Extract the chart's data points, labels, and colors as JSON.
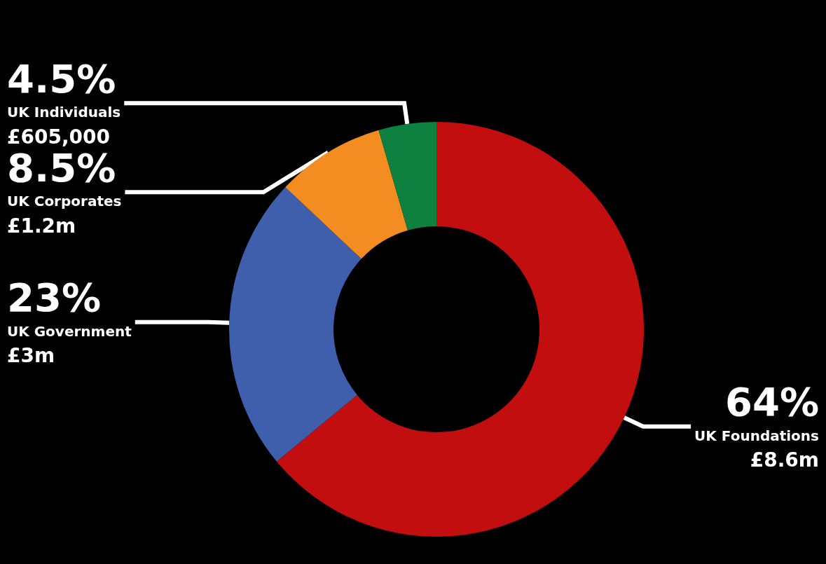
{
  "chart_data": {
    "type": "donut",
    "categories": [
      "UK Foundations",
      "UK Government",
      "UK Corporates",
      "UK Individuals"
    ],
    "values": [
      64,
      23,
      8.5,
      4.5
    ],
    "colors": [
      "#c20e0e",
      "#3f5fad",
      "#f48d21",
      "#0e8040"
    ],
    "value_labels": [
      "64%",
      "23%",
      "8.5%",
      "4.5%"
    ],
    "annotations": [
      "£8.6m",
      "£3m",
      "£1.2m",
      "£605,000"
    ]
  }
}
